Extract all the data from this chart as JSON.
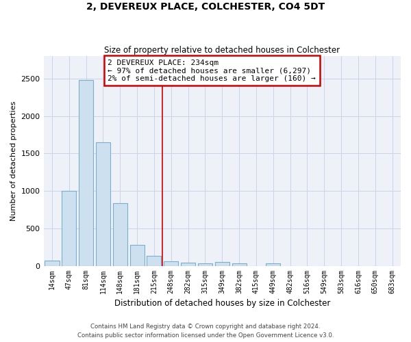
{
  "title": "2, DEVEREUX PLACE, COLCHESTER, CO4 5DT",
  "subtitle": "Size of property relative to detached houses in Colchester",
  "xlabel": "Distribution of detached houses by size in Colchester",
  "ylabel": "Number of detached properties",
  "categories": [
    "14sqm",
    "47sqm",
    "81sqm",
    "114sqm",
    "148sqm",
    "181sqm",
    "215sqm",
    "248sqm",
    "282sqm",
    "315sqm",
    "349sqm",
    "382sqm",
    "415sqm",
    "449sqm",
    "482sqm",
    "516sqm",
    "549sqm",
    "583sqm",
    "616sqm",
    "650sqm",
    "683sqm"
  ],
  "values": [
    70,
    1000,
    2480,
    1650,
    840,
    280,
    135,
    60,
    40,
    30,
    50,
    35,
    0,
    28,
    0,
    0,
    0,
    0,
    0,
    0,
    0
  ],
  "bar_color": "#cce0f0",
  "bar_edge_color": "#7aaecc",
  "grid_color": "#c8d4e8",
  "bg_color": "#eef2f8",
  "vline_x": 6.5,
  "vline_color": "#cc0000",
  "annotation_text": "2 DEVEREUX PLACE: 234sqm\n← 97% of detached houses are smaller (6,297)\n2% of semi-detached houses are larger (160) →",
  "annotation_box_color": "#ffffff",
  "annotation_box_edge": "#cc0000",
  "ylim": [
    0,
    2800
  ],
  "yticks": [
    0,
    500,
    1000,
    1500,
    2000,
    2500
  ],
  "footer1": "Contains HM Land Registry data © Crown copyright and database right 2024.",
  "footer2": "Contains public sector information licensed under the Open Government Licence v3.0."
}
